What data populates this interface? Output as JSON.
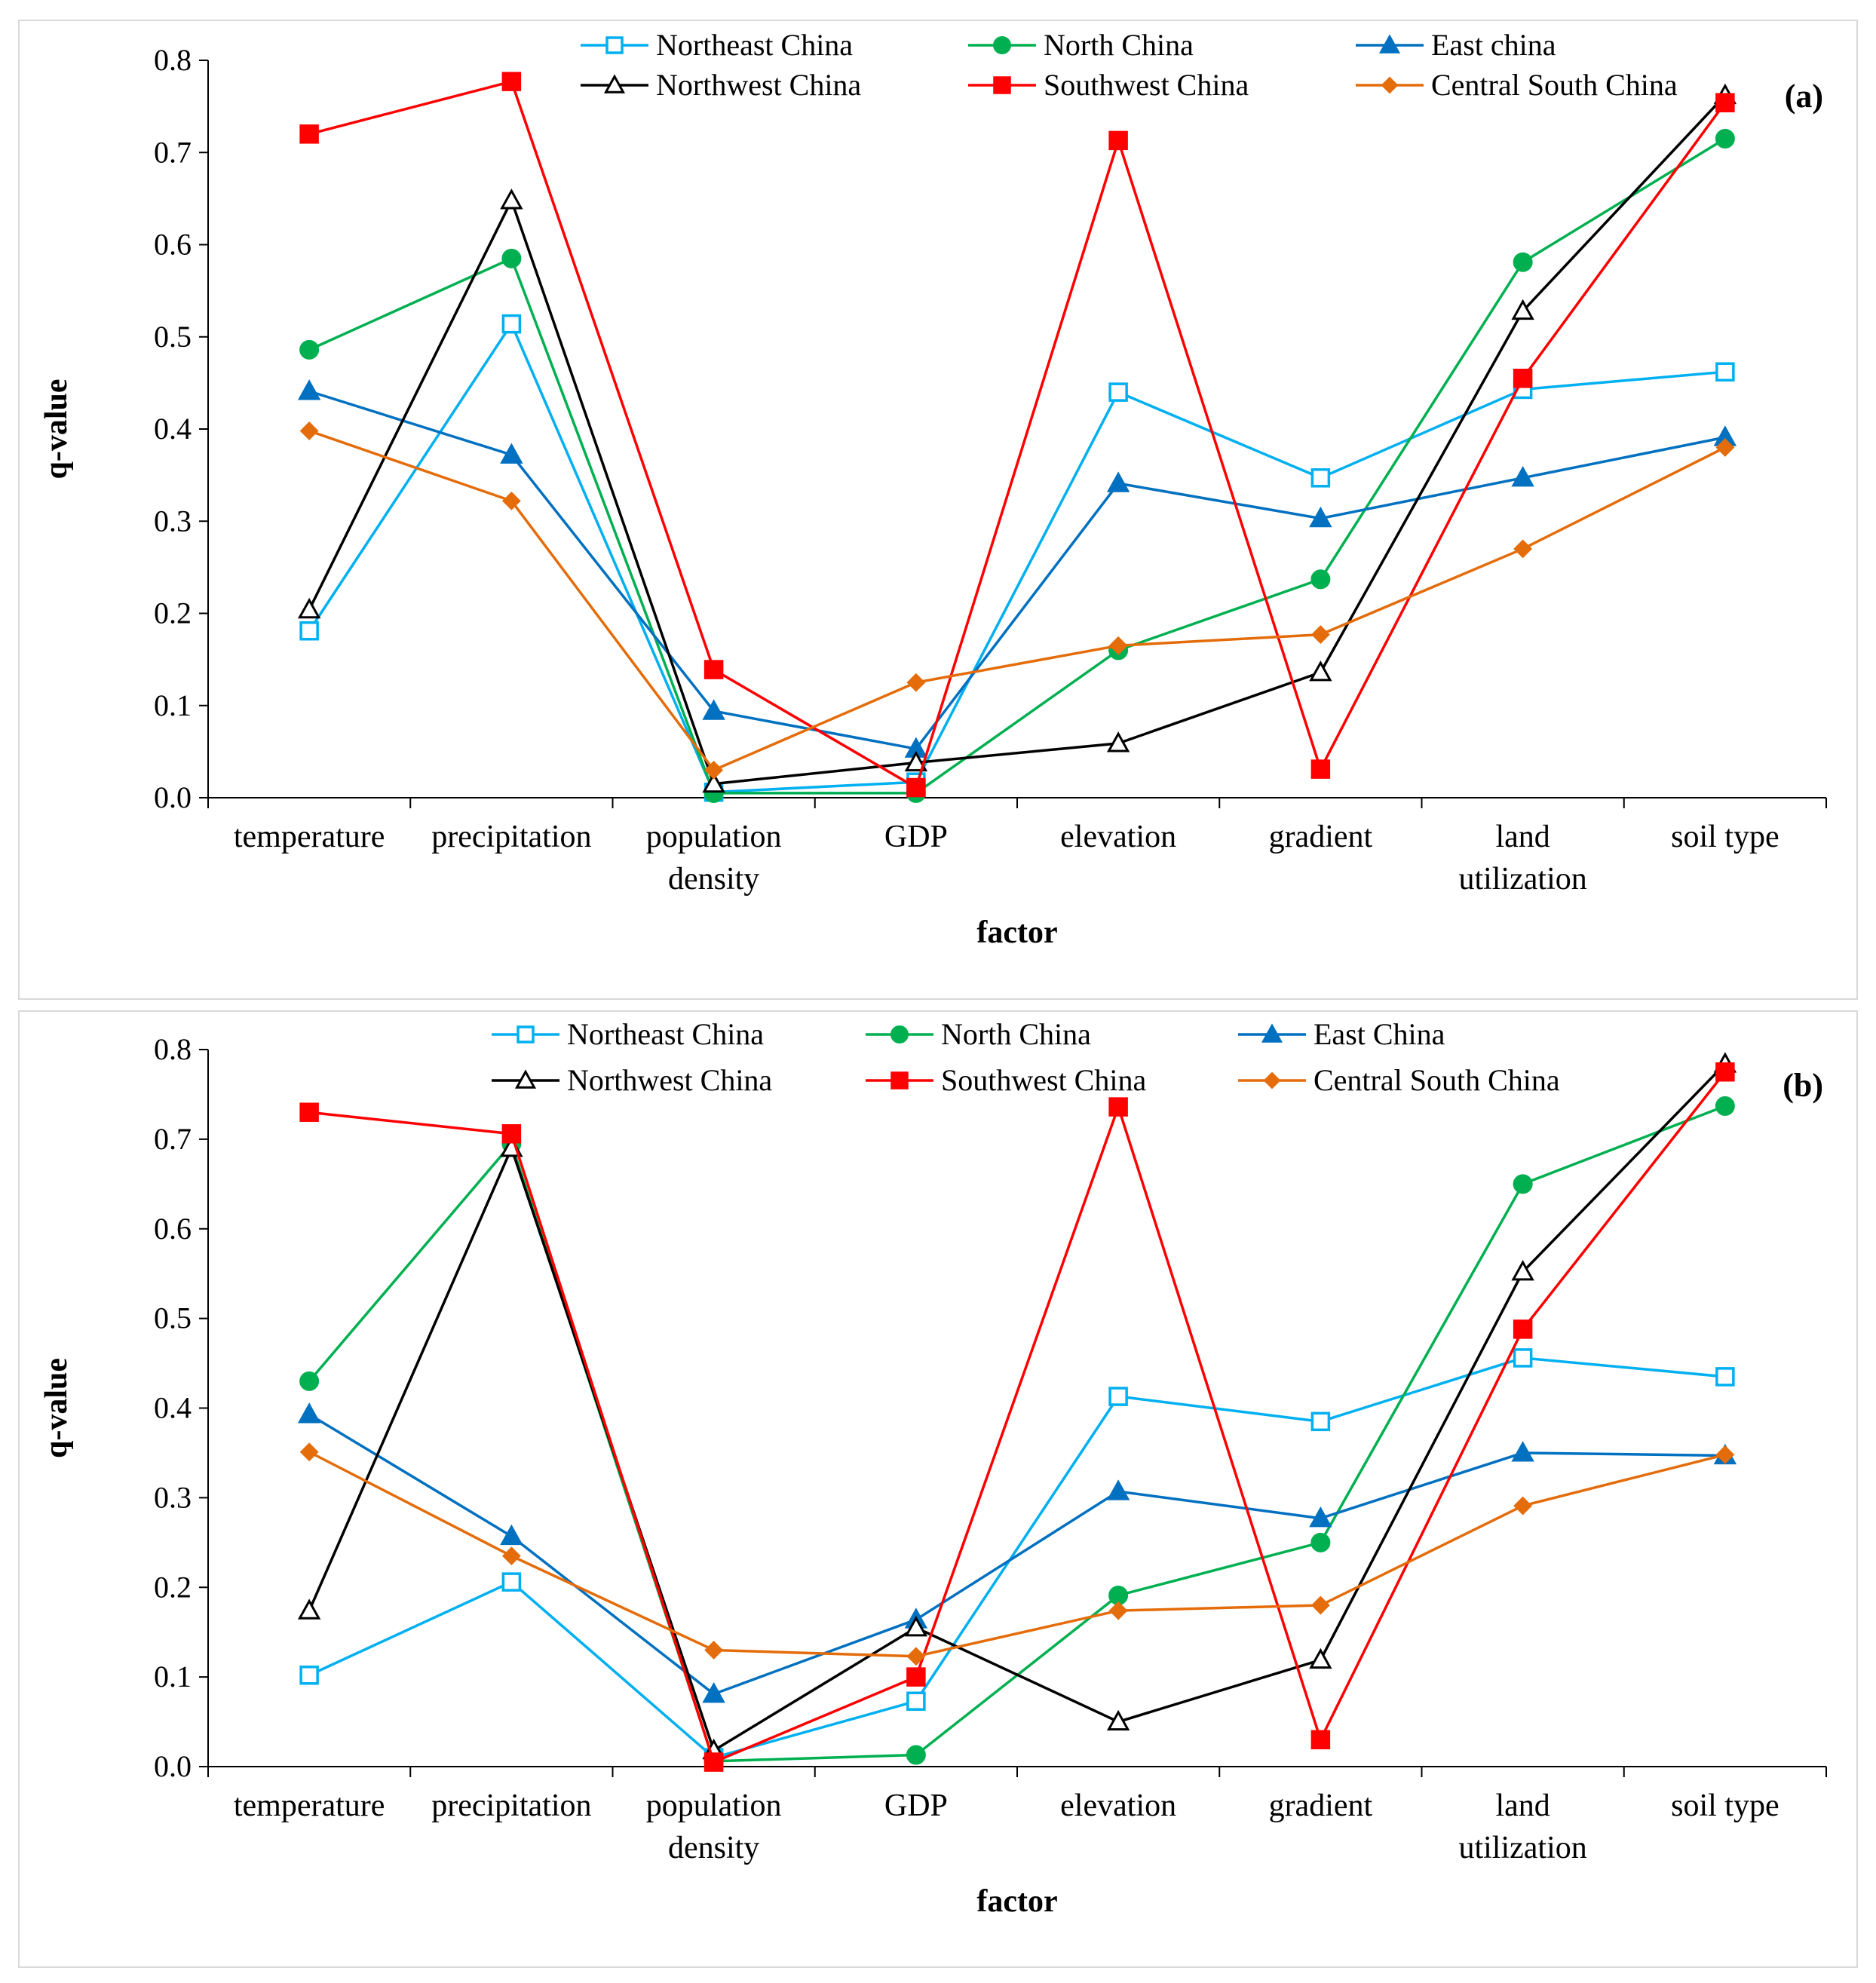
{
  "chart_data": [
    {
      "type": "line",
      "panel_label": "(a)",
      "xlabel": "factor",
      "ylabel": "q-value",
      "ylim": [
        0,
        0.8
      ],
      "yticks": [
        "0.0",
        "0.1",
        "0.2",
        "0.3",
        "0.4",
        "0.5",
        "0.6",
        "0.7",
        "0.8"
      ],
      "categories": [
        [
          "temperature"
        ],
        [
          "precipitation"
        ],
        [
          "population",
          "density"
        ],
        [
          "GDP"
        ],
        [
          "elevation"
        ],
        [
          "gradient"
        ],
        [
          "land",
          "utilization"
        ],
        [
          "soil type"
        ]
      ],
      "legend_placement": "top",
      "series": [
        {
          "name": "Northeast China",
          "color": "#00b0f0",
          "marker": "square-open",
          "values": [
            0.181,
            0.514,
            0.006,
            0.017,
            0.44,
            0.347,
            0.443,
            0.462
          ]
        },
        {
          "name": "North China",
          "color": "#00b050",
          "marker": "circle",
          "values": [
            0.486,
            0.585,
            0.005,
            0.005,
            0.16,
            0.237,
            0.581,
            0.715
          ]
        },
        {
          "name": "East china",
          "color": "#0070c0",
          "marker": "triangle",
          "values": [
            0.441,
            0.372,
            0.094,
            0.053,
            0.341,
            0.303,
            0.347,
            0.391
          ]
        },
        {
          "name": "Northwest China",
          "color": "#000000",
          "marker": "triangle-open",
          "values": [
            0.204,
            0.648,
            0.015,
            0.038,
            0.059,
            0.136,
            0.528,
            0.762
          ]
        },
        {
          "name": "Southwest China",
          "color": "#ff0000",
          "marker": "square",
          "values": [
            0.72,
            0.777,
            0.139,
            0.011,
            0.713,
            0.031,
            0.455,
            0.754
          ]
        },
        {
          "name": "Central South China",
          "color": "#e46c0a",
          "marker": "diamond",
          "values": [
            0.398,
            0.322,
            0.03,
            0.125,
            0.165,
            0.177,
            0.27,
            0.38
          ]
        }
      ]
    },
    {
      "type": "line",
      "panel_label": "(b)",
      "xlabel": "factor",
      "ylabel": "q-value",
      "ylim": [
        0,
        0.8
      ],
      "yticks": [
        "0.0",
        "0.1",
        "0.2",
        "0.3",
        "0.4",
        "0.5",
        "0.6",
        "0.7",
        "0.8"
      ],
      "categories": [
        [
          "temperature"
        ],
        [
          "precipitation"
        ],
        [
          "population",
          "density"
        ],
        [
          "GDP"
        ],
        [
          "elevation"
        ],
        [
          "gradient"
        ],
        [
          "land",
          "utilization"
        ],
        [
          "soil type"
        ]
      ],
      "legend_placement": "top",
      "series": [
        {
          "name": "Northeast China",
          "color": "#00b0f0",
          "marker": "square-open",
          "values": [
            0.102,
            0.206,
            0.01,
            0.073,
            0.413,
            0.385,
            0.456,
            0.435
          ]
        },
        {
          "name": "North China",
          "color": "#00b050",
          "marker": "circle",
          "values": [
            0.43,
            0.695,
            0.006,
            0.013,
            0.191,
            0.25,
            0.65,
            0.737
          ]
        },
        {
          "name": "East China",
          "color": "#0070c0",
          "marker": "triangle",
          "values": [
            0.393,
            0.257,
            0.081,
            0.164,
            0.307,
            0.277,
            0.35,
            0.347
          ]
        },
        {
          "name": "Northwest China",
          "color": "#000000",
          "marker": "triangle-open",
          "values": [
            0.174,
            0.69,
            0.018,
            0.155,
            0.05,
            0.119,
            0.552,
            0.784
          ]
        },
        {
          "name": "Southwest China",
          "color": "#ff0000",
          "marker": "square",
          "values": [
            0.73,
            0.706,
            0.005,
            0.1,
            0.736,
            0.03,
            0.488,
            0.775
          ]
        },
        {
          "name": "Central South China",
          "color": "#e46c0a",
          "marker": "diamond",
          "values": [
            0.351,
            0.235,
            0.13,
            0.123,
            0.174,
            0.18,
            0.291,
            0.348
          ]
        }
      ]
    }
  ]
}
